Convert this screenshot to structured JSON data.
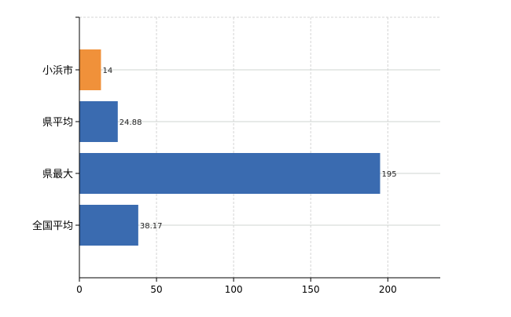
{
  "chart_data": {
    "type": "bar",
    "orientation": "horizontal",
    "title": "",
    "xlabel": "",
    "ylabel": "",
    "categories": [
      "小浜市",
      "県平均",
      "県最大",
      "全国平均"
    ],
    "values": [
      14,
      24.88,
      195,
      38.17
    ],
    "data_labels": [
      "14",
      "24.88",
      "195",
      "38.17"
    ],
    "bar_colors": [
      "#F0913A",
      "#3A6BB0",
      "#3A6BB0",
      "#3A6BB0"
    ],
    "xlim": [
      0,
      234
    ],
    "xticks": [
      0,
      50,
      100,
      150,
      200
    ],
    "grid": true,
    "legend": "none"
  }
}
